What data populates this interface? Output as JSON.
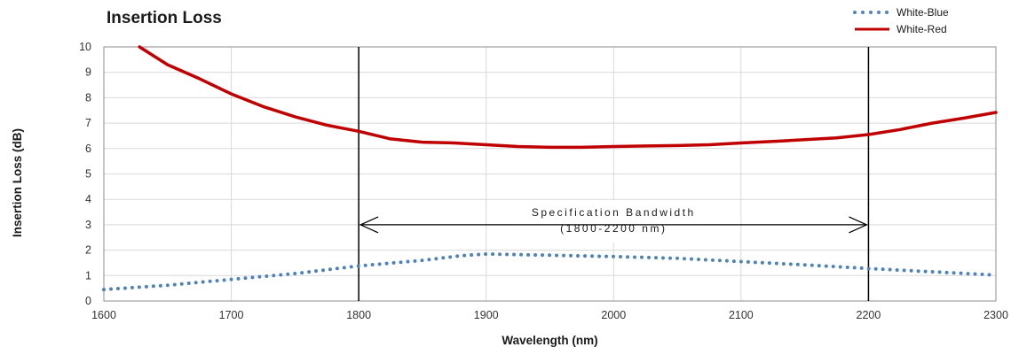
{
  "chart_data": {
    "type": "line",
    "title": "Insertion Loss",
    "xlabel": "Wavelength (nm)",
    "ylabel": "Insertion Loss (dB)",
    "xlim": [
      1600,
      2300
    ],
    "ylim": [
      0,
      10
    ],
    "xticks": [
      1600,
      1700,
      1800,
      1900,
      2000,
      2100,
      2200,
      2300
    ],
    "yticks": [
      0,
      1,
      2,
      3,
      4,
      5,
      6,
      7,
      8,
      9,
      10
    ],
    "grid": true,
    "legend_position": "top-right",
    "series": [
      {
        "name": "White-Blue",
        "style": "dotted",
        "color": "#4f81bd",
        "x": [
          1600,
          1650,
          1700,
          1750,
          1800,
          1850,
          1880,
          1900,
          1950,
          2000,
          2050,
          2100,
          2150,
          2200,
          2250,
          2300
        ],
        "y": [
          0.45,
          0.62,
          0.85,
          1.08,
          1.38,
          1.6,
          1.78,
          1.85,
          1.8,
          1.75,
          1.68,
          1.55,
          1.42,
          1.28,
          1.15,
          1.02
        ]
      },
      {
        "name": "White-Red",
        "style": "solid",
        "color": "#c00000",
        "x": [
          1628,
          1650,
          1675,
          1700,
          1725,
          1750,
          1775,
          1800,
          1825,
          1850,
          1875,
          1900,
          1925,
          1950,
          1975,
          2000,
          2025,
          2050,
          2075,
          2100,
          2125,
          2150,
          2175,
          2200,
          2225,
          2250,
          2275,
          2300
        ],
        "y": [
          10,
          9.3,
          8.75,
          8.15,
          7.65,
          7.25,
          6.92,
          6.68,
          6.38,
          6.25,
          6.22,
          6.15,
          6.08,
          6.05,
          6.05,
          6.08,
          6.1,
          6.12,
          6.15,
          6.22,
          6.28,
          6.35,
          6.42,
          6.55,
          6.75,
          7.0,
          7.2,
          7.42
        ]
      }
    ],
    "annotation": {
      "line1": "Specification Bandwidth",
      "line2": "(1800-2200 nm)",
      "x_start": 1800,
      "x_end": 2200,
      "y": 3
    }
  }
}
